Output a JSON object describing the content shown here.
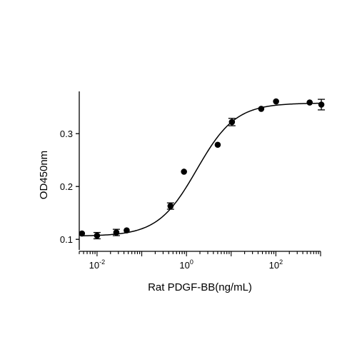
{
  "chart_data": {
    "type": "scatter",
    "title": "",
    "xlabel": "Rat PDGF-BB(ng/mL)",
    "ylabel": "OD450nm",
    "x_scale": "log10",
    "xlim": [
      0.004,
      1000
    ],
    "ylim": [
      0.08,
      0.38
    ],
    "x_ticks": [
      {
        "value": 0.01,
        "base": "10",
        "exp": "-2"
      },
      {
        "value": 1,
        "base": "10",
        "exp": "0"
      },
      {
        "value": 100,
        "base": "10",
        "exp": "2"
      }
    ],
    "y_ticks": [
      {
        "value": 0.1,
        "label": "0.1"
      },
      {
        "value": 0.2,
        "label": "0.2"
      },
      {
        "value": 0.3,
        "label": "0.3"
      }
    ],
    "points": [
      {
        "x": 0.0046,
        "y": 0.111,
        "err": 0
      },
      {
        "x": 0.01,
        "y": 0.107,
        "err": 0.006
      },
      {
        "x": 0.027,
        "y": 0.113,
        "err": 0.006
      },
      {
        "x": 0.046,
        "y": 0.117,
        "err": 0
      },
      {
        "x": 0.44,
        "y": 0.163,
        "err": 0.006
      },
      {
        "x": 0.88,
        "y": 0.228,
        "err": 0
      },
      {
        "x": 5.0,
        "y": 0.279,
        "err": 0
      },
      {
        "x": 10.4,
        "y": 0.322,
        "err": 0.007
      },
      {
        "x": 47,
        "y": 0.347,
        "err": 0
      },
      {
        "x": 101,
        "y": 0.361,
        "err": 0
      },
      {
        "x": 570,
        "y": 0.359,
        "err": 0
      },
      {
        "x": 1040,
        "y": 0.355,
        "err": 0.01
      }
    ],
    "fit": {
      "bottom": 0.106,
      "top": 0.358,
      "ec50": 1.7,
      "hill": 1.0
    },
    "grid": false,
    "legend": "none"
  }
}
